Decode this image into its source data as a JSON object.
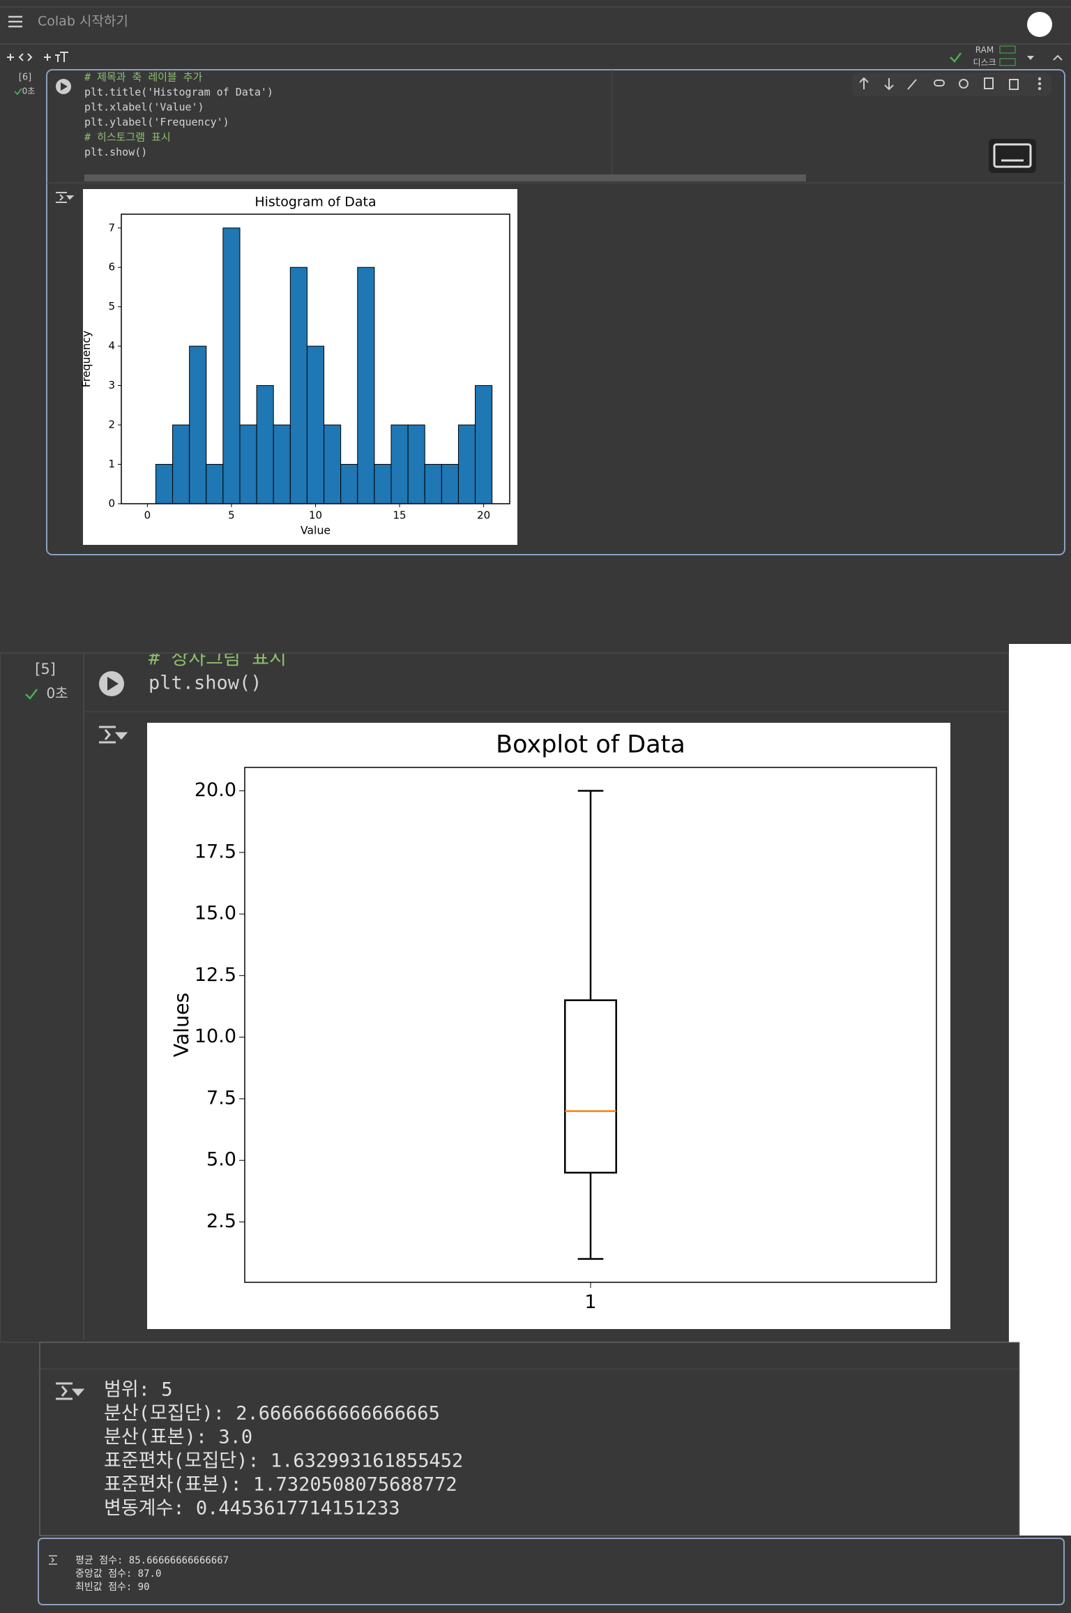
{
  "header": {
    "title": "Colab 시작하기"
  },
  "toolbar": {
    "ram": "RAM",
    "disk": "디스크"
  },
  "cells": [
    {
      "index": "[6]",
      "time": "0초",
      "code": [
        "# 제목과 축 레이블 추가",
        "plt.title('Histogram of Data')",
        "plt.xlabel('Value')",
        "plt.ylabel('Frequency')",
        "# 히스토그램 표시",
        "plt.show()"
      ]
    },
    {
      "index": "[5]",
      "time": "0초",
      "code": [
        "# 상자그림 표시",
        "plt.show()"
      ]
    }
  ],
  "chart_data": [
    {
      "type": "histogram",
      "title": "Histogram of Data",
      "xlabel": "Value",
      "ylabel": "Frequency",
      "bins": [
        -0.5,
        0.5,
        1.5,
        2.5,
        3.5,
        4.5,
        5.5,
        6.5,
        7.5,
        8.5,
        9.5,
        10.5,
        11.5,
        12.5,
        13.5,
        14.5,
        15.5,
        16.5,
        17.5,
        18.5,
        19.5,
        20.5
      ],
      "values": [
        0,
        1,
        2,
        4,
        1,
        7,
        2,
        3,
        2,
        6,
        4,
        2,
        1,
        6,
        1,
        2,
        2,
        1,
        1,
        2,
        3
      ],
      "color": "#1f77b4",
      "edgecolor": "#000000",
      "xlim": [
        -1.55,
        21.55
      ],
      "xticks": [
        0,
        5,
        10,
        15,
        20
      ],
      "ylim": [
        0,
        7.35
      ],
      "yticks": [
        0,
        1,
        2,
        3,
        4,
        5,
        6,
        7
      ]
    },
    {
      "type": "box",
      "title": "Boxplot of Data",
      "ylabel": "Values",
      "categories": [
        "1"
      ],
      "whisker_low": 1,
      "q1": 4.5,
      "median": 7,
      "q3": 11.5,
      "whisker_high": 20,
      "color": "#000000",
      "median_color": "#ff7f0e",
      "ylim": [
        0.05,
        20.95
      ],
      "yticks": [
        2.5,
        {
          "value": 5,
          "label": "5.0"
        },
        7.5,
        {
          "value": 10,
          "label": "10.0"
        },
        12.5,
        {
          "value": 15,
          "label": "15.0"
        },
        17.5,
        {
          "value": 20,
          "label": "20.0"
        }
      ]
    }
  ],
  "outputs": [
    [
      "범위: 5",
      "분산(모집단): 2.6666666666666665",
      "분산(표본): 3.0",
      "표준편차(모집단): 1.632993161855452",
      "표준편차(표본): 1.7320508075688772",
      "변동계수: 0.4453617714151233"
    ],
    [
      "평균 점수: 85.66666666666667",
      "중앙값 점수: 87.0",
      "최빈값 점수: 90"
    ]
  ]
}
